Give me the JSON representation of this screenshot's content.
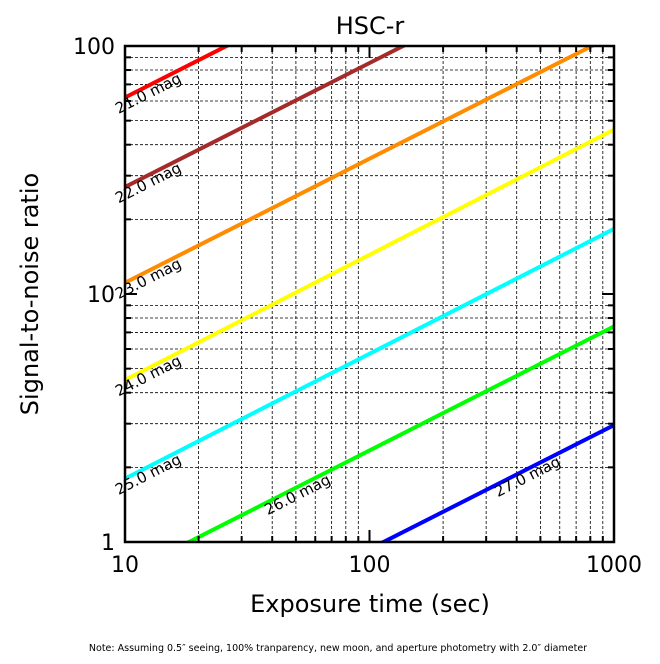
{
  "chart_data": {
    "type": "line",
    "title": "HSC-r",
    "xlabel": "Exposure time (sec)",
    "ylabel": "Signal-to-noise ratio",
    "xscale": "log",
    "yscale": "log",
    "xlim": [
      10,
      1000
    ],
    "ylim": [
      1,
      100
    ],
    "xticks": [
      {
        "v": 10,
        "label": "10"
      },
      {
        "v": 100,
        "label": "100"
      },
      {
        "v": 1000,
        "label": "1000"
      }
    ],
    "yticks": [
      {
        "v": 1,
        "label": "1"
      },
      {
        "v": 10,
        "label": "10"
      },
      {
        "v": 100,
        "label": "100"
      }
    ],
    "grid": true,
    "note": "Note: Assuming 0.5″ seeing, 100% tranparency, new moon, and aperture photometry with 2.0″ diameter",
    "series": [
      {
        "name": "21.0 mag",
        "color": "#ff0000",
        "x": [
          10,
          1000
        ],
        "y": [
          62,
          620
        ],
        "label_at": 13.5
      },
      {
        "name": "22.0 mag",
        "color": "#a52a2a",
        "x": [
          10,
          1000
        ],
        "y": [
          27,
          270
        ],
        "label_at": 13.5
      },
      {
        "name": "23.0 mag",
        "color": "#ff8c00",
        "x": [
          10,
          1000
        ],
        "y": [
          11.1,
          111
        ],
        "label_at": 13.5
      },
      {
        "name": "24.0 mag",
        "color": "#ffff00",
        "x": [
          10,
          1000
        ],
        "y": [
          4.5,
          46
        ],
        "label_at": 13.5
      },
      {
        "name": "25.0 mag",
        "color": "#00ffff",
        "x": [
          10,
          1000
        ],
        "y": [
          1.8,
          18.3
        ],
        "label_at": 13.5
      },
      {
        "name": "26.0 mag",
        "color": "#00ff00",
        "x": [
          10,
          1000
        ],
        "y": [
          0.74,
          7.4
        ],
        "label_at": 55
      },
      {
        "name": "27.0 mag",
        "color": "#0000ff",
        "x": [
          10,
          1000
        ],
        "y": [
          0.296,
          2.96
        ],
        "label_at": 480
      }
    ]
  }
}
